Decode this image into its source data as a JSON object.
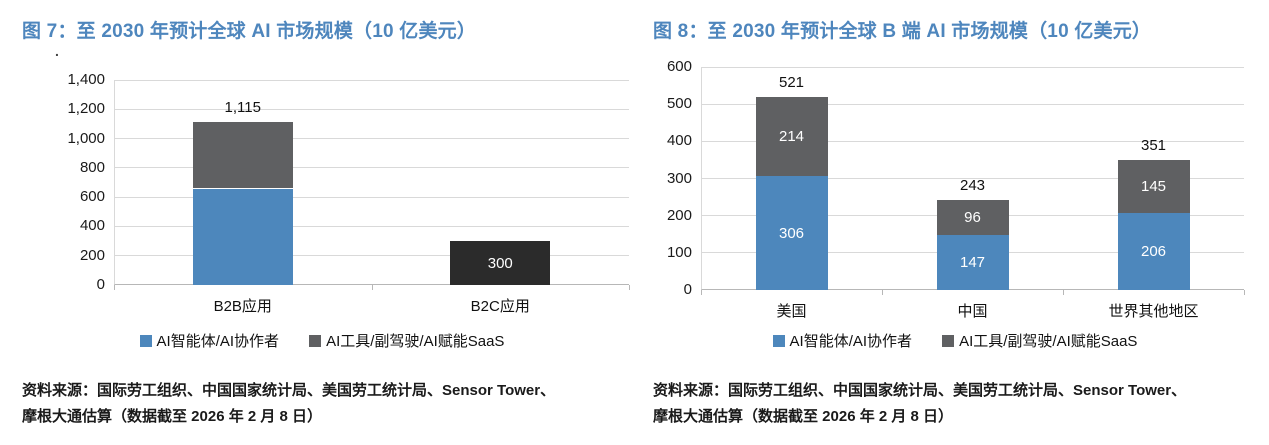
{
  "colors": {
    "title_blue": "#4e86bd",
    "series_blue": "#4d87bc",
    "series_gray": "#5f6062",
    "series_dark": "#2b2b2b",
    "gridline": "#d9d9d9",
    "axis": "#b7b7b7",
    "inside_label": "#ffffff"
  },
  "chart_data": [
    {
      "type": "bar",
      "variant": "stacked",
      "title": "图 7：至 2030 年预计全球 AI 市场规模（10 亿美元）",
      "note_mark": ".",
      "ylim": [
        0,
        1400
      ],
      "grid": true,
      "legend_position": "bottom",
      "yticks": [
        0,
        200,
        400,
        600,
        800,
        1000,
        1200,
        1400
      ],
      "ytick_labels": [
        "0",
        "200",
        "400",
        "600",
        "800",
        "1,000",
        "1,200",
        "1,400"
      ],
      "categories": [
        "B2B应用",
        "B2C应用"
      ],
      "series": [
        {
          "name": "AI智能体/AI协作者",
          "color_key": "series_blue",
          "in_legend": true,
          "values": [
            659,
            0
          ],
          "value_labels": [
            null,
            null
          ]
        },
        {
          "name": "AI工具/副驾驶/AI赋能SaaS",
          "color_key": "series_gray",
          "in_legend": true,
          "values": [
            456,
            0
          ],
          "value_labels": [
            null,
            null
          ]
        },
        {
          "name": "B2C应用",
          "color_key": "series_dark",
          "in_legend": false,
          "values": [
            0,
            300
          ],
          "value_labels": [
            null,
            "300"
          ]
        }
      ],
      "total_labels": [
        "1,115",
        null
      ],
      "legend": [
        {
          "label": "AI智能体/AI协作者",
          "color_key": "series_blue"
        },
        {
          "label": "AI工具/副驾驶/AI赋能SaaS",
          "color_key": "series_gray"
        }
      ],
      "source_line1": "资料来源：国际劳工组织、中国国家统计局、美国劳工统计局、Sensor Tower、",
      "source_line2": "摩根大通估算（数据截至 2026 年 2 月 8 日）"
    },
    {
      "type": "bar",
      "variant": "stacked",
      "title": "图 8：至 2030 年预计全球 B 端 AI 市场规模（10 亿美元）",
      "ylim": [
        0,
        600
      ],
      "grid": true,
      "legend_position": "bottom",
      "yticks": [
        0,
        100,
        200,
        300,
        400,
        500,
        600
      ],
      "ytick_labels": [
        "0",
        "100",
        "200",
        "300",
        "400",
        "500",
        "600"
      ],
      "categories": [
        "美国",
        "中国",
        "世界其他地区"
      ],
      "series": [
        {
          "name": "AI智能体/AI协作者",
          "color_key": "series_blue",
          "in_legend": true,
          "values": [
            306,
            147,
            206
          ],
          "value_labels": [
            "306",
            "147",
            "206"
          ]
        },
        {
          "name": "AI工具/副驾驶/AI赋能SaaS",
          "color_key": "series_gray",
          "in_legend": true,
          "values": [
            214,
            96,
            145
          ],
          "value_labels": [
            "214",
            "96",
            "145"
          ]
        }
      ],
      "total_labels": [
        "521",
        "243",
        "351"
      ],
      "legend": [
        {
          "label": "AI智能体/AI协作者",
          "color_key": "series_blue"
        },
        {
          "label": "AI工具/副驾驶/AI赋能SaaS",
          "color_key": "series_gray"
        }
      ],
      "source_line1": "资料来源：国际劳工组织、中国国家统计局、美国劳工统计局、Sensor Tower、",
      "source_line2": "摩根大通估算（数据截至 2026 年 2 月 8 日）"
    }
  ]
}
